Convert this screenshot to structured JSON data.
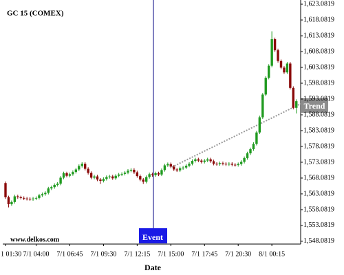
{
  "chart_data": {
    "type": "candlestick",
    "title": "GC 15 (COMEX)",
    "x_label": "Date",
    "watermark": "www.delkos.com",
    "annotations": [
      "Event",
      "Trend"
    ],
    "categories": [
      "1 01:30",
      null,
      null,
      null,
      null,
      null,
      null,
      null,
      null,
      null,
      "7/1 04:00",
      null,
      null,
      null,
      null,
      null,
      null,
      null,
      null,
      null,
      null,
      "7/1 06:45",
      null,
      null,
      null,
      null,
      null,
      null,
      null,
      null,
      null,
      null,
      "7/1 09:30",
      null,
      null,
      null,
      null,
      null,
      null,
      null,
      null,
      null,
      null,
      "7/1 12:15",
      null,
      null,
      null,
      null,
      null,
      null,
      null,
      null,
      null,
      null,
      "7/1 15:00",
      null,
      null,
      null,
      null,
      null,
      null,
      null,
      null,
      null,
      null,
      "7/1 17:45",
      null,
      null,
      null,
      null,
      null,
      null,
      null,
      null,
      null,
      null,
      "7/1 20:30",
      null,
      null,
      null,
      null,
      null,
      null,
      null,
      null,
      null,
      null,
      "8/1 00:15",
      null,
      null,
      null,
      null,
      null,
      null,
      null,
      null
    ],
    "open": [
      1566.5,
      1562.0,
      1559.8,
      1560.5,
      1562.3,
      1562.0,
      1561.8,
      1561.6,
      1561.5,
      1561.4,
      1561.6,
      1561.8,
      1562.6,
      1563.0,
      1563.4,
      1564.8,
      1565.2,
      1565.9,
      1566.3,
      1568.2,
      1569.6,
      1568.8,
      1569.3,
      1570.0,
      1570.8,
      1571.9,
      1572.6,
      1571.0,
      1569.7,
      1568.2,
      1568.6,
      1567.6,
      1567.2,
      1567.8,
      1568.4,
      1568.6,
      1568.0,
      1568.8,
      1569.2,
      1569.4,
      1569.8,
      1570.4,
      1570.7,
      1569.9,
      1568.7,
      1567.6,
      1566.9,
      1568.4,
      1569.3,
      1569.0,
      1569.6,
      1569.2,
      1570.6,
      1572.1,
      1572.5,
      1571.7,
      1570.8,
      1570.5,
      1571.2,
      1571.4,
      1572.0,
      1572.6,
      1573.5,
      1574.0,
      1573.6,
      1573.2,
      1573.6,
      1574.0,
      1573.4,
      1572.6,
      1572.5,
      1572.8,
      1572.6,
      1572.4,
      1572.6,
      1572.3,
      1572.2,
      1572.5,
      1573.2,
      1574.4,
      1575.9,
      1577.2,
      1578.9,
      1582.5,
      1587.3,
      1594.5,
      1599.8,
      1603.6,
      1612.0,
      1608.5,
      1605.1,
      1603.0,
      1601.5,
      1604.3,
      1596.6,
      1590.3
    ],
    "high": [
      1567.0,
      1562.5,
      1561.0,
      1562.8,
      1562.8,
      1562.5,
      1562.3,
      1562.1,
      1562.0,
      1562.1,
      1562.3,
      1563.1,
      1563.5,
      1563.9,
      1565.3,
      1565.7,
      1566.4,
      1566.8,
      1568.7,
      1570.1,
      1570.1,
      1569.8,
      1570.5,
      1571.3,
      1572.4,
      1573.1,
      1573.1,
      1571.5,
      1570.2,
      1569.1,
      1569.1,
      1568.1,
      1568.3,
      1568.9,
      1569.1,
      1569.1,
      1569.3,
      1569.7,
      1569.9,
      1570.3,
      1570.9,
      1571.2,
      1571.2,
      1570.4,
      1569.2,
      1568.1,
      1568.9,
      1569.8,
      1569.8,
      1570.1,
      1570.1,
      1571.1,
      1572.6,
      1573.0,
      1573.0,
      1572.2,
      1571.3,
      1571.7,
      1571.9,
      1572.5,
      1573.1,
      1574.0,
      1574.5,
      1574.5,
      1574.1,
      1574.1,
      1574.5,
      1574.5,
      1573.9,
      1573.1,
      1573.3,
      1573.3,
      1573.1,
      1573.1,
      1573.1,
      1572.8,
      1573.0,
      1573.7,
      1574.9,
      1576.4,
      1577.7,
      1579.4,
      1583.0,
      1587.8,
      1595.0,
      1600.3,
      1604.1,
      1614.5,
      1612.5,
      1609.0,
      1605.6,
      1603.5,
      1604.8,
      1604.8,
      1597.1,
      1593.0
    ],
    "low": [
      1561.5,
      1558.8,
      1559.3,
      1560.0,
      1561.5,
      1561.3,
      1561.1,
      1561.0,
      1560.9,
      1560.9,
      1561.1,
      1561.3,
      1562.1,
      1562.5,
      1562.9,
      1564.3,
      1564.7,
      1565.4,
      1565.8,
      1567.7,
      1568.3,
      1568.3,
      1568.8,
      1569.5,
      1570.3,
      1571.4,
      1570.5,
      1569.2,
      1567.7,
      1567.7,
      1567.1,
      1566.2,
      1566.7,
      1567.3,
      1567.9,
      1567.5,
      1567.5,
      1568.3,
      1568.7,
      1568.9,
      1569.3,
      1569.9,
      1569.4,
      1568.2,
      1567.1,
      1566.2,
      1566.4,
      1567.9,
      1568.5,
      1568.5,
      1568.7,
      1568.7,
      1570.1,
      1571.6,
      1571.2,
      1570.3,
      1570.0,
      1570.0,
      1570.7,
      1570.9,
      1571.5,
      1572.1,
      1573.0,
      1573.1,
      1572.7,
      1572.7,
      1573.1,
      1572.9,
      1572.1,
      1572.0,
      1572.0,
      1572.1,
      1571.9,
      1571.9,
      1571.8,
      1571.7,
      1571.7,
      1572.0,
      1572.7,
      1573.9,
      1575.4,
      1576.7,
      1578.4,
      1582.0,
      1586.8,
      1594.0,
      1599.3,
      1603.1,
      1608.0,
      1604.6,
      1602.5,
      1601.0,
      1601.0,
      1596.1,
      1589.8,
      1588.5
    ],
    "close": [
      1562.0,
      1559.8,
      1560.5,
      1562.3,
      1562.0,
      1561.8,
      1561.6,
      1561.5,
      1561.4,
      1561.6,
      1561.8,
      1562.6,
      1563.0,
      1563.4,
      1564.8,
      1565.2,
      1565.9,
      1566.3,
      1568.2,
      1569.6,
      1568.8,
      1569.3,
      1570.0,
      1570.8,
      1571.9,
      1572.6,
      1571.0,
      1569.7,
      1568.2,
      1568.6,
      1567.6,
      1567.2,
      1567.8,
      1568.4,
      1568.6,
      1568.0,
      1568.8,
      1569.2,
      1569.4,
      1569.8,
      1570.4,
      1570.7,
      1569.9,
      1568.7,
      1567.6,
      1566.9,
      1568.4,
      1569.3,
      1569.0,
      1569.6,
      1569.2,
      1570.6,
      1572.1,
      1572.5,
      1571.7,
      1570.8,
      1570.5,
      1571.2,
      1571.4,
      1572.0,
      1572.6,
      1573.5,
      1574.0,
      1573.6,
      1573.2,
      1573.6,
      1574.0,
      1573.4,
      1572.6,
      1572.5,
      1572.8,
      1572.6,
      1572.4,
      1572.6,
      1572.3,
      1572.2,
      1572.5,
      1573.2,
      1574.4,
      1575.9,
      1577.2,
      1578.9,
      1582.5,
      1587.3,
      1594.5,
      1599.8,
      1603.6,
      1612.0,
      1608.5,
      1605.1,
      1603.0,
      1601.5,
      1604.3,
      1596.6,
      1590.3,
      1592.4
    ],
    "up_color": "#1f9a1f",
    "down_color": "#8b0a0a",
    "ylim": [
      1547.2,
      1624.4
    ],
    "yticks": [
      {
        "value": 1548.0819,
        "label": "1,548.0819"
      },
      {
        "value": 1553.0819,
        "label": "1,553.0819"
      },
      {
        "value": 1558.0819,
        "label": "1,558.0819"
      },
      {
        "value": 1563.0819,
        "label": "1,563.0819"
      },
      {
        "value": 1568.0819,
        "label": "1,568.0819"
      },
      {
        "value": 1573.0819,
        "label": "1,573.0819"
      },
      {
        "value": 1578.0819,
        "label": "1,578.0819"
      },
      {
        "value": 1583.0819,
        "label": "1,583.0819"
      },
      {
        "value": 1588.0819,
        "label": "1,588.0819"
      },
      {
        "value": 1593.0819,
        "label": "1,593.0819"
      },
      {
        "value": 1598.0819,
        "label": "1,598.0819"
      },
      {
        "value": 1603.0819,
        "label": "1,603.0819"
      },
      {
        "value": 1608.0819,
        "label": "1,608.0819"
      },
      {
        "value": 1613.0819,
        "label": "1,613.0819"
      },
      {
        "value": 1618.0819,
        "label": "1,618.0819"
      },
      {
        "value": 1623.0819,
        "label": "1,623.0819"
      }
    ]
  }
}
